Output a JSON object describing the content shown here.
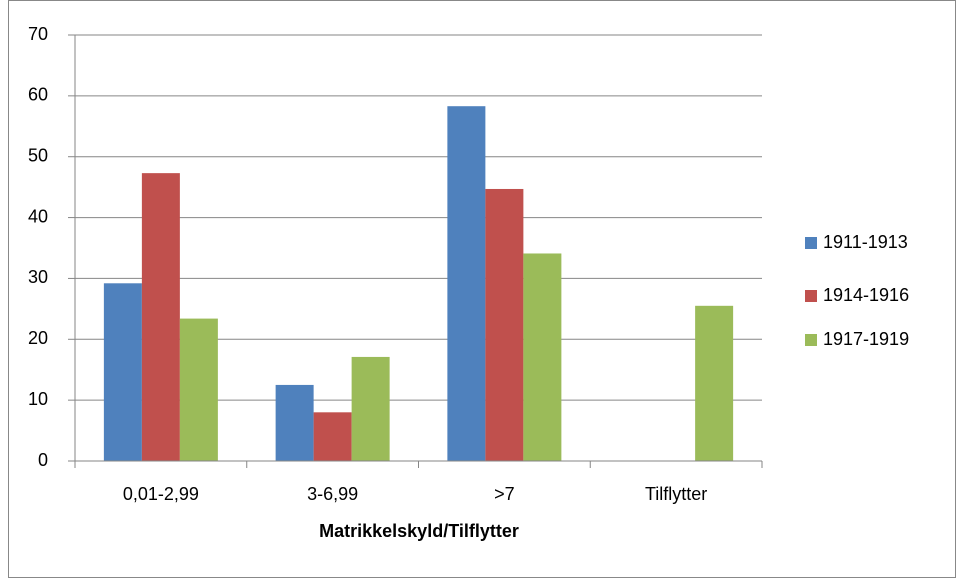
{
  "chart_data": {
    "type": "bar",
    "x_label": "Matrikkelskyld/Tilflytter",
    "categories": [
      "0,01-2,99",
      "3-6,99",
      ">7",
      "Tilflytter"
    ],
    "series": [
      {
        "name": "1911-1913",
        "color": "#4f81bd",
        "values": [
          29.2,
          12.5,
          58.3,
          null
        ]
      },
      {
        "name": "1914-1916",
        "color": "#c0504d",
        "values": [
          47.3,
          8.0,
          44.7,
          null
        ]
      },
      {
        "name": "1917-1919",
        "color": "#9bbb59",
        "values": [
          23.4,
          17.1,
          34.1,
          25.5
        ]
      }
    ],
    "ylim": [
      0,
      70
    ],
    "yticks": [
      0,
      10,
      20,
      30,
      40,
      50,
      60,
      70
    ],
    "grid": true,
    "legend": "right"
  }
}
